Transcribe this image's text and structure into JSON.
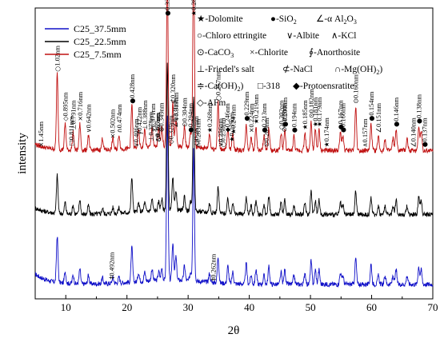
{
  "chart_data": {
    "type": "line",
    "title": "",
    "xlabel": "2θ",
    "ylabel": "intensity",
    "xlim": [
      5,
      70
    ],
    "x_ticks": [
      "10",
      "20",
      "30",
      "40",
      "50",
      "60",
      "70"
    ],
    "x_tick_values": [
      10,
      20,
      30,
      40,
      50,
      60,
      70
    ],
    "series": [
      {
        "name": "C25_37.5mm",
        "color": "#1010c8",
        "baseline": 5.0
      },
      {
        "name": "C25_22.5mm",
        "color": "#000000",
        "baseline": 29.0
      },
      {
        "name": "C25_7.5mm",
        "color": "#c01010",
        "baseline": 51.0
      }
    ],
    "peaks": [
      {
        "x": 8.6,
        "h": [
          16,
          13,
          26
        ]
      },
      {
        "x": 9.9,
        "h": [
          4,
          4,
          9
        ]
      },
      {
        "x": 11.2,
        "h": [
          3,
          3,
          6
        ]
      },
      {
        "x": 12.3,
        "h": [
          5,
          5,
          9
        ]
      },
      {
        "x": 13.7,
        "h": [
          3,
          3,
          5
        ]
      },
      {
        "x": 16.0,
        "h": [
          2,
          2,
          4
        ]
      },
      {
        "x": 17.7,
        "h": [
          2,
          2,
          4
        ]
      },
      {
        "x": 18.7,
        "h": [
          2,
          2,
          5
        ]
      },
      {
        "x": 20.8,
        "h": [
          12,
          12,
          15
        ]
      },
      {
        "x": 21.9,
        "h": [
          3,
          3,
          6
        ]
      },
      {
        "x": 22.9,
        "h": [
          3,
          3,
          6
        ]
      },
      {
        "x": 24.1,
        "h": [
          4,
          4,
          7
        ]
      },
      {
        "x": 25.2,
        "h": [
          3,
          3,
          6
        ]
      },
      {
        "x": 25.7,
        "h": [
          4,
          4,
          7
        ]
      },
      {
        "x": 26.6,
        "h": [
          56,
          50,
          58
        ]
      },
      {
        "x": 27.5,
        "h": [
          13,
          11,
          15
        ]
      },
      {
        "x": 28.0,
        "h": [
          8,
          7,
          9
        ]
      },
      {
        "x": 29.4,
        "h": [
          5,
          5,
          7
        ]
      },
      {
        "x": 30.4,
        "h": [
          3,
          3,
          5
        ]
      },
      {
        "x": 30.9,
        "h": [
          46,
          40,
          68
        ]
      },
      {
        "x": 33.5,
        "h": [
          3,
          3,
          5
        ]
      },
      {
        "x": 34.9,
        "h": [
          9,
          9,
          16
        ]
      },
      {
        "x": 36.5,
        "h": [
          6,
          5,
          7
        ]
      },
      {
        "x": 37.3,
        "h": [
          4,
          4,
          6
        ]
      },
      {
        "x": 39.5,
        "h": [
          7,
          6,
          9
        ]
      },
      {
        "x": 40.3,
        "h": [
          3,
          3,
          5
        ]
      },
      {
        "x": 41.1,
        "h": [
          5,
          5,
          8
        ]
      },
      {
        "x": 42.4,
        "h": [
          3,
          3,
          5
        ]
      },
      {
        "x": 43.2,
        "h": [
          6,
          6,
          8
        ]
      },
      {
        "x": 45.2,
        "h": [
          4,
          4,
          6
        ]
      },
      {
        "x": 45.8,
        "h": [
          5,
          5,
          7
        ]
      },
      {
        "x": 47.3,
        "h": [
          3,
          3,
          5
        ]
      },
      {
        "x": 49.1,
        "h": [
          4,
          4,
          6
        ]
      },
      {
        "x": 50.1,
        "h": [
          8,
          8,
          10
        ]
      },
      {
        "x": 50.8,
        "h": [
          5,
          5,
          7
        ]
      },
      {
        "x": 51.4,
        "h": [
          5,
          5,
          7
        ]
      },
      {
        "x": 54.9,
        "h": [
          4,
          4,
          6
        ]
      },
      {
        "x": 55.3,
        "h": [
          3,
          3,
          5
        ]
      },
      {
        "x": 57.4,
        "h": [
          9,
          8,
          15
        ]
      },
      {
        "x": 59.9,
        "h": [
          7,
          6,
          9
        ]
      },
      {
        "x": 61.1,
        "h": [
          3,
          3,
          5
        ]
      },
      {
        "x": 62.2,
        "h": [
          3,
          3,
          4
        ]
      },
      {
        "x": 63.5,
        "h": [
          3,
          3,
          4
        ]
      },
      {
        "x": 64.0,
        "h": [
          5,
          5,
          7
        ]
      },
      {
        "x": 65.8,
        "h": [
          3,
          3,
          4
        ]
      },
      {
        "x": 67.7,
        "h": [
          6,
          6,
          8
        ]
      },
      {
        "x": 68.1,
        "h": [
          5,
          5,
          7
        ]
      }
    ],
    "legend": {
      "placement": "top-left"
    },
    "phase_key": [
      {
        "symbol": "★",
        "label": "-Dolomite"
      },
      {
        "symbol": "●",
        "label": "-SiO"
      },
      {
        "symbol": "∠",
        "label": "-α Al"
      },
      {
        "symbol": "○",
        "label": "-Chloro ettringite"
      },
      {
        "symbol": "∨",
        "label": "-Albite"
      },
      {
        "symbol": "∧",
        "label": "-KCl"
      },
      {
        "symbol": "⊙",
        "label": "-CaCO"
      },
      {
        "symbol": "×",
        "label": "-Chlorite"
      },
      {
        "symbol": "∮",
        "label": "-Anorthosite"
      },
      {
        "symbol": "⊥",
        "label": "-Friedel's salt"
      },
      {
        "symbol": "⊄",
        "label": "-NaCl"
      },
      {
        "symbol": "∩",
        "label": "-Mg(OH)"
      },
      {
        "symbol": "≑",
        "label": "-Ca(OH)"
      },
      {
        "symbol": "□",
        "label": "-318"
      },
      {
        "symbol": "◆",
        "label": "-Protoensratite"
      },
      {
        "symbol": "◇",
        "label": "-AFm"
      }
    ],
    "phase_key_subscripts": {
      "SiO": "2",
      "Al": "2",
      "AlO": "3",
      "CaCO": "3",
      "Mg": "2",
      "Ca": "2"
    },
    "annotations": [
      {
        "x": 5.9,
        "label": "1.45nm",
        "sym": "×"
      },
      {
        "x": 8.6,
        "label": "1.02nm",
        "sym": "○"
      },
      {
        "x": 9.9,
        "label": "0.895nm",
        "sym": "◇"
      },
      {
        "x": 10.9,
        "label": "0.811nm",
        "sym": "□"
      },
      {
        "x": 11.2,
        "label": "0.791nm",
        "sym": "⊥"
      },
      {
        "x": 12.3,
        "label": "0.716nm",
        "sym": "×"
      },
      {
        "x": 13.7,
        "label": "0.642nm",
        "sym": "∨"
      },
      {
        "x": 17.6,
        "label": "0.502nm",
        "sym": "×"
      },
      {
        "x": 18.7,
        "label": "0.474nm",
        "sym": "∩"
      },
      {
        "x": 20.8,
        "label": "0.428nm",
        "sym": "●"
      },
      {
        "x": 21.5,
        "label": "0.406nm",
        "sym": "∨"
      },
      {
        "x": 22.0,
        "label": "0.422nm",
        "sym": "∮"
      },
      {
        "x": 22.9,
        "label": "0.388nm",
        "sym": "⊥"
      },
      {
        "x": 23.9,
        "label": "0.378nm",
        "sym": "⊥"
      },
      {
        "x": 24.2,
        "label": "0.371nm",
        "sym": "∨"
      },
      {
        "x": 25.0,
        "label": "0.367nm",
        "sym": "○"
      },
      {
        "x": 25.0,
        "label": "0.355nm",
        "sym": "∧"
      },
      {
        "x": 25.6,
        "label": "0.349nm",
        "sym": "⊕"
      },
      {
        "x": 26.6,
        "label": "0.336nm",
        "sym": "●"
      },
      {
        "x": 27.2,
        "label": "0.329nm",
        "sym": "◇"
      },
      {
        "x": 27.5,
        "label": "0.320nm",
        "sym": "⊄"
      },
      {
        "x": 27.9,
        "label": "0.331nm",
        "sym": "∠"
      },
      {
        "x": 28.0,
        "label": "0.319nm",
        "sym": "∨"
      },
      {
        "x": 29.4,
        "label": "0.304nm",
        "sym": "⊙"
      },
      {
        "x": 30.4,
        "label": "0.294nm",
        "sym": "●"
      },
      {
        "x": 30.9,
        "label": "0.289nm",
        "sym": "★"
      },
      {
        "x": 31.3,
        "label": "0.287nm",
        "sym": "○"
      },
      {
        "x": 31.6,
        "label": "0.283nm",
        "sym": "∩"
      },
      {
        "x": 33.5,
        "label": "0.268nm",
        "sym": "★"
      },
      {
        "x": 34.9,
        "label": "0.257nm",
        "sym": "○"
      },
      {
        "x": 35.3,
        "label": "0.256nm",
        "sym": "∨"
      },
      {
        "x": 35.7,
        "label": "0.250nm",
        "sym": "○"
      },
      {
        "x": 36.4,
        "label": "0.246nm",
        "sym": "◆"
      },
      {
        "x": 37.1,
        "label": "0.239nm",
        "sym": "★"
      },
      {
        "x": 37.4,
        "label": "0.241nm",
        "sym": "★"
      },
      {
        "x": 39.5,
        "label": "0.229nm",
        "sym": "●"
      },
      {
        "x": 40.3,
        "label": "0.224nm",
        "sym": "×"
      },
      {
        "x": 41.1,
        "label": "0.219nm",
        "sym": "★"
      },
      {
        "x": 42.4,
        "label": "0.213nm",
        "sym": "●"
      },
      {
        "x": 42.8,
        "label": "0.209nm",
        "sym": "⊙"
      },
      {
        "x": 45.2,
        "label": "0.202nm",
        "sym": "○"
      },
      {
        "x": 45.8,
        "label": "0.200nm",
        "sym": "●"
      },
      {
        "x": 45.7,
        "label": "0.199nm",
        "sym": "⊙"
      },
      {
        "x": 47.3,
        "label": "0.194nm",
        "sym": "●"
      },
      {
        "x": 49.1,
        "label": "0.185nm",
        "sym": "★"
      },
      {
        "x": 50.1,
        "label": "0.182nm",
        "sym": "⊙"
      },
      {
        "x": 50.8,
        "label": "0.181nm",
        "sym": "★"
      },
      {
        "x": 51.4,
        "label": "0.179nm",
        "sym": "★"
      },
      {
        "x": 52.6,
        "label": "0.174nm",
        "sym": "★"
      },
      {
        "x": 54.9,
        "label": "0.167nm",
        "sym": "●"
      },
      {
        "x": 55.3,
        "label": "0.166nm",
        "sym": "●"
      },
      {
        "x": 57.4,
        "label": "0.160nm",
        "sym": "⊙"
      },
      {
        "x": 58.9,
        "label": "0.157nm",
        "sym": "∧"
      },
      {
        "x": 59.9,
        "label": "0.154nm",
        "sym": "●"
      },
      {
        "x": 61.1,
        "label": "0.151nm",
        "sym": "∠"
      },
      {
        "x": 64.0,
        "label": "0.146nm",
        "sym": "●"
      },
      {
        "x": 66.8,
        "label": "0.140nm",
        "sym": "∠"
      },
      {
        "x": 67.7,
        "label": "0.138nm",
        "sym": "●"
      },
      {
        "x": 68.6,
        "label": "0.137nm",
        "sym": "●"
      },
      {
        "x": 17.5,
        "label": "0.492nm",
        "sym": "‡",
        "series": 0
      },
      {
        "x": 34.1,
        "label": "0.262nm",
        "sym": "‡",
        "series": 0
      }
    ]
  }
}
